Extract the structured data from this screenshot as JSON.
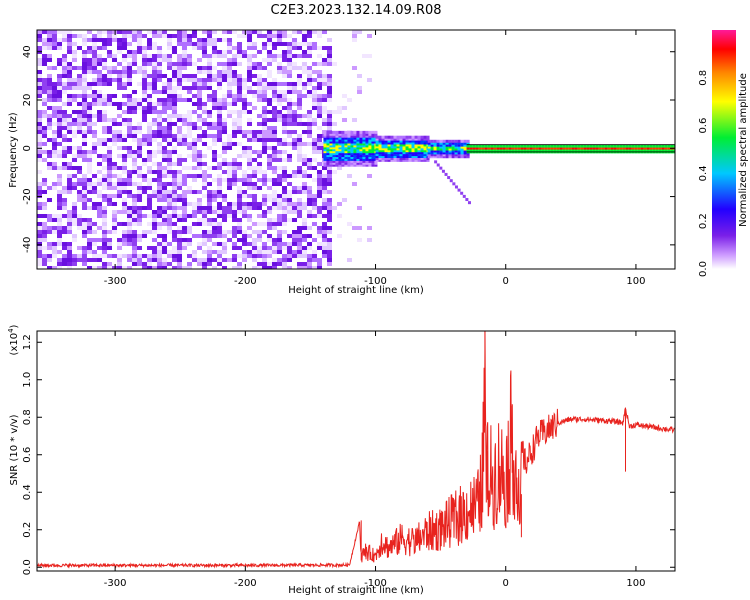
{
  "title": "C2E3.2023.132.14.09.R08",
  "chart_data": [
    {
      "type": "heatmap",
      "xlabel": "Height of straight line (km)",
      "ylabel": "Frequency (Hz)",
      "xlim": [
        -360,
        130
      ],
      "ylim": [
        -50,
        49
      ],
      "xticks": [
        -300,
        -200,
        -100,
        0,
        100
      ],
      "xtick_labels": [
        "-300",
        "-200",
        "-100",
        "0",
        "100"
      ],
      "yticks": [
        -40,
        -20,
        0,
        20,
        40
      ],
      "ytick_labels": [
        "-40",
        "-20",
        "0",
        "20",
        "40"
      ],
      "colorbar": {
        "label": "Normalized spectral amplitude",
        "range": [
          0,
          1
        ],
        "ticks": [
          0.0,
          0.2,
          0.4,
          0.6,
          0.8
        ],
        "tick_labels": [
          "0.0",
          "0.2",
          "0.4",
          "0.6",
          "0.8"
        ],
        "colors": [
          "#ffffff",
          "#cc99ff",
          "#7a1fe8",
          "#2200ff",
          "#00c8ff",
          "#00ee33",
          "#ffff00",
          "#ff8800",
          "#ff0000",
          "#ff1a99"
        ]
      },
      "noise_region_x": [
        -360,
        -135
      ],
      "signal_center_freq": 0,
      "signal_segments": [
        {
          "x": [
            -140,
            -100
          ],
          "halfwidth": 7
        },
        {
          "x": [
            -100,
            -60
          ],
          "halfwidth": 5
        },
        {
          "x": [
            -60,
            -30
          ],
          "halfwidth": 3.5
        },
        {
          "x": [
            -30,
            130
          ],
          "halfwidth": 1.5
        }
      ]
    },
    {
      "type": "line",
      "xlabel": "Height of straight line (km)",
      "ylabel": "SNR (10 * v/v)",
      "y_multiplier_label": "(x10",
      "y_multiplier_exp": "4",
      "xlim": [
        -360,
        130
      ],
      "ylim": [
        -0.02,
        1.26
      ],
      "xticks": [
        -300,
        -200,
        -100,
        0,
        100
      ],
      "xtick_labels": [
        "-300",
        "-200",
        "-100",
        "0",
        "100"
      ],
      "yticks": [
        0.0,
        0.2,
        0.4,
        0.6,
        0.8,
        1.0,
        1.2
      ],
      "ytick_labels": [
        "0.0",
        "0.2",
        "0.4",
        "0.6",
        "0.8",
        "1.0",
        "1.2"
      ],
      "line_color": "#e8231e",
      "series": [
        {
          "x": [
            -360,
            -300,
            -200,
            -120,
            -112,
            -111,
            -108,
            -100,
            -95,
            -90,
            -80,
            -70,
            -60,
            -50,
            -40,
            -30,
            -20,
            -17,
            -16,
            -15,
            -14,
            -10,
            -5,
            0,
            5,
            10,
            11,
            12,
            15,
            20,
            25,
            30,
            40,
            50,
            60,
            70,
            80,
            90,
            92,
            95,
            100,
            110,
            120,
            130
          ],
          "values": [
            0.01,
            0.01,
            0.01,
            0.012,
            0.25,
            0.06,
            0.1,
            0.07,
            0.17,
            0.12,
            0.18,
            0.16,
            0.22,
            0.24,
            0.3,
            0.35,
            0.4,
            0.7,
            1.26,
            0.5,
            0.6,
            0.55,
            0.62,
            0.55,
            0.84,
            0.4,
            0.16,
            0.65,
            0.55,
            0.62,
            0.7,
            0.72,
            0.77,
            0.79,
            0.79,
            0.785,
            0.78,
            0.77,
            0.85,
            0.75,
            0.76,
            0.75,
            0.74,
            0.73
          ]
        }
      ]
    }
  ]
}
